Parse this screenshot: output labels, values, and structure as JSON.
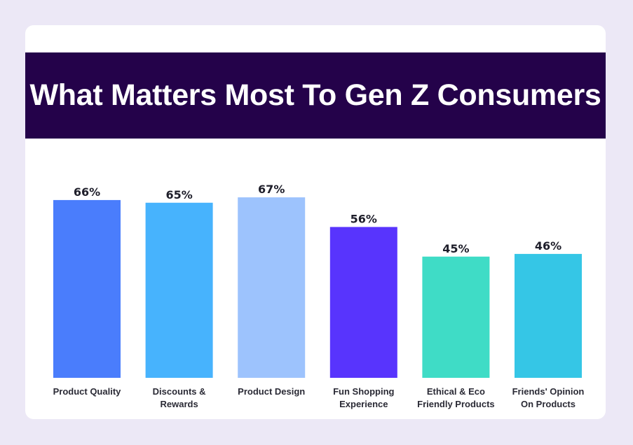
{
  "header": {
    "title": "What Matters Most To Gen Z Consumers"
  },
  "chart_data": {
    "type": "bar",
    "title": "What Matters Most To Gen Z Consumers",
    "categories": [
      [
        "Product Quality"
      ],
      [
        "Discounts &",
        "Rewards"
      ],
      [
        "Product Design"
      ],
      [
        "Fun Shopping",
        "Experience"
      ],
      [
        "Ethical & Eco",
        "Friendly Products"
      ],
      [
        "Friends' Opinion",
        "On Products"
      ]
    ],
    "values": [
      66,
      65,
      67,
      56,
      45,
      46
    ],
    "value_labels": [
      "66%",
      "65%",
      "67%",
      "56%",
      "45%",
      "46%"
    ],
    "colors": [
      "#4a7dfc",
      "#47b3fd",
      "#9dc3fd",
      "#5834fd",
      "#3fdcc6",
      "#35c6e6"
    ],
    "ylim": [
      0,
      100
    ],
    "grid": false,
    "legend": "none"
  }
}
